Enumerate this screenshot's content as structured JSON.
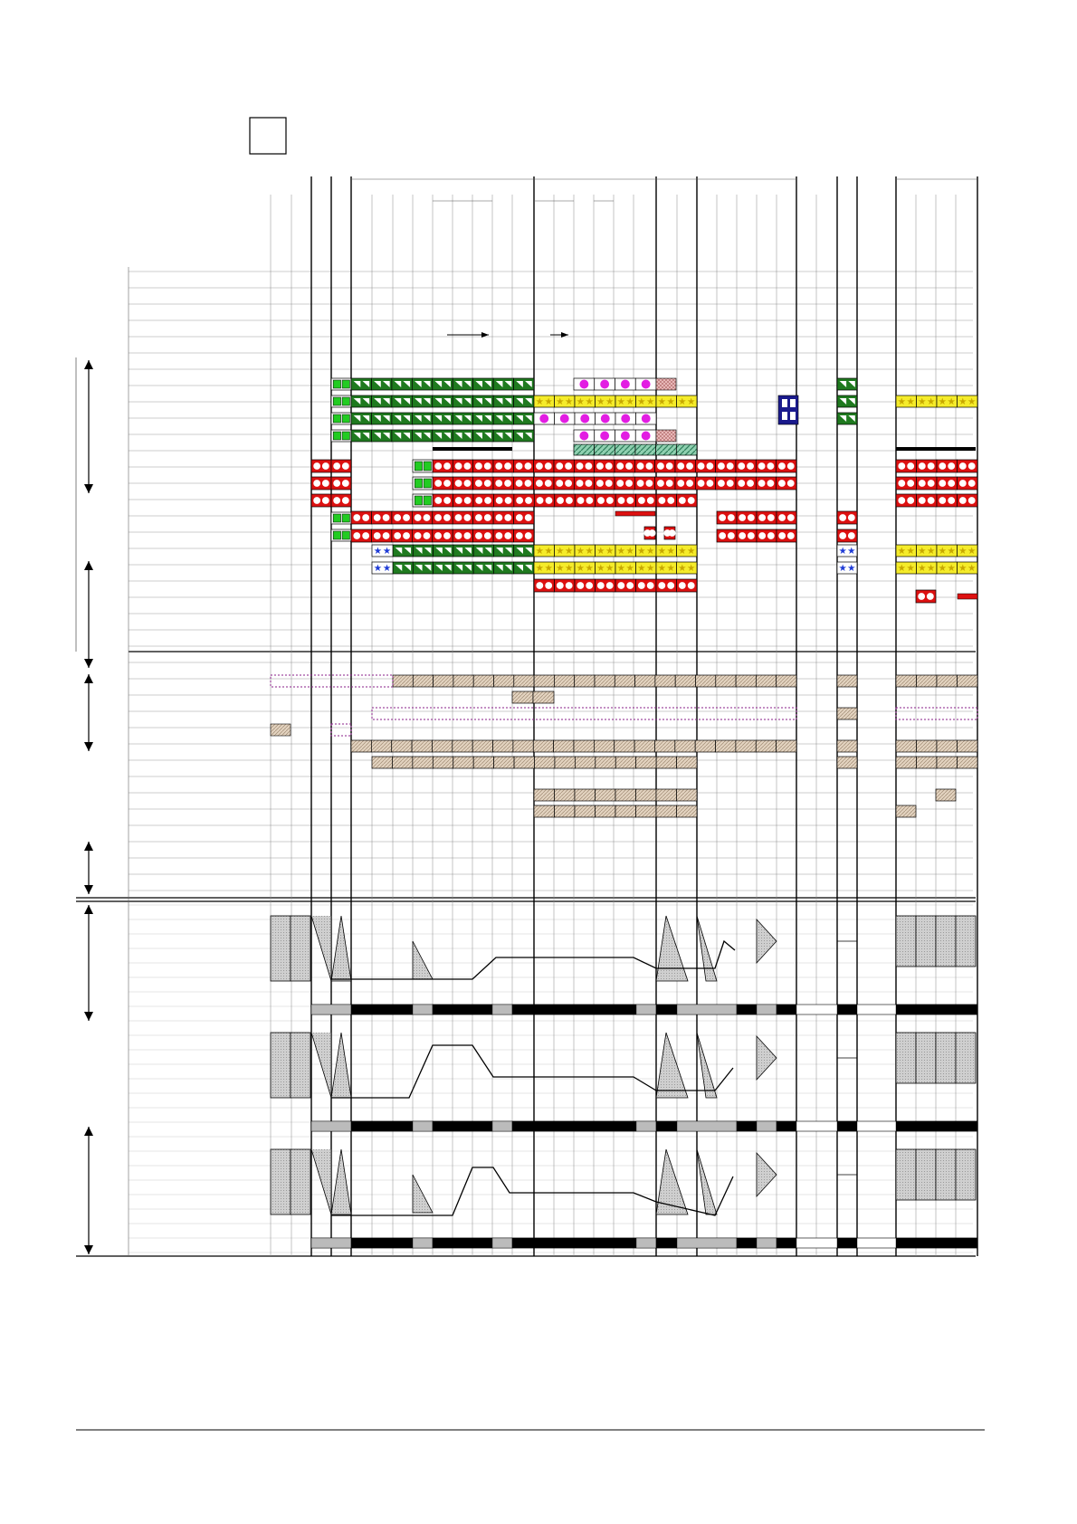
{
  "document": {
    "page_label": "",
    "footer_text": ""
  },
  "legend_colors": {
    "green_triangle": "#1f7a1f",
    "green_square": "#22cc22",
    "yellow_star": "#f5ec2a",
    "magenta_dot": "#e21de2",
    "red_dot": "#dd1111",
    "navy_block": "#1a1a8c",
    "blue_star": "#1e3bd6",
    "tan_hatch": "#dbc9b4",
    "teal_hatch": "#5ea98a",
    "grey_profile": "#c8c8c8",
    "black_bar": "#000000"
  },
  "icons": {
    "double_arrow": "vertical-double-arrow",
    "flow_arrow": "right-arrow"
  }
}
